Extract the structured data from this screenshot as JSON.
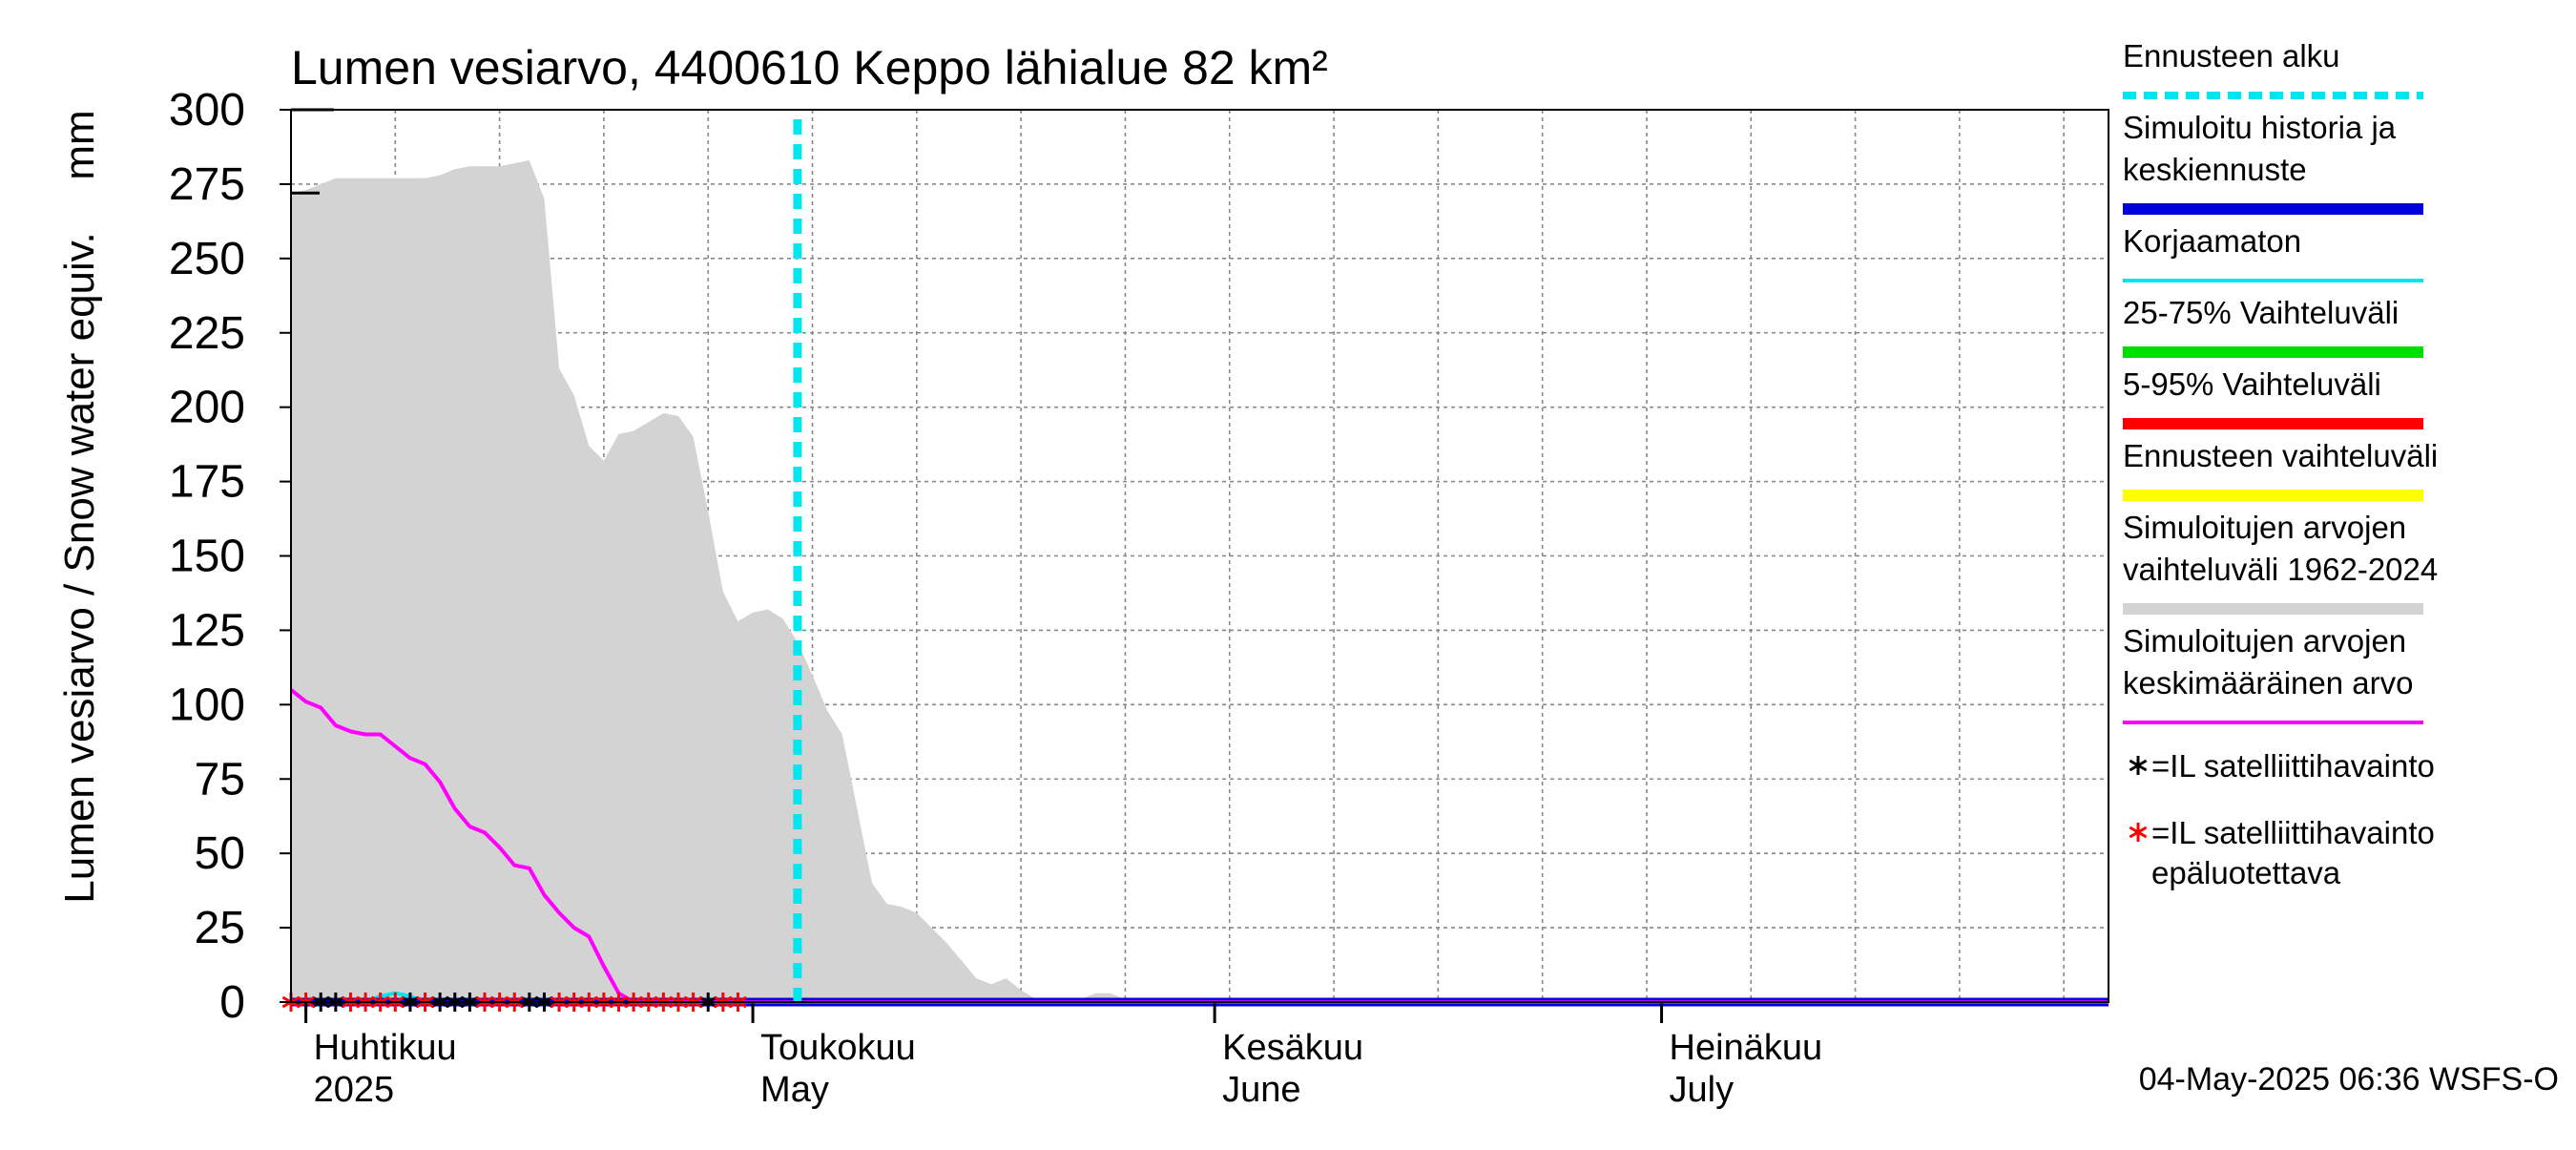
{
  "chart_data": {
    "type": "area",
    "title": "Lumen vesiarvo, 4400610 Keppo lähialue 82 km²",
    "ylabel": "Lumen vesiarvo / Snow water equiv.",
    "yunit": "mm",
    "ylim": [
      0,
      300
    ],
    "yticks": [
      0,
      25,
      50,
      75,
      100,
      125,
      150,
      175,
      200,
      225,
      250,
      275,
      300
    ],
    "xlim": [
      "2025-03-31",
      "2025-07-31"
    ],
    "grid": true,
    "legend_position": "right",
    "month_labels": [
      {
        "date": "2025-04-01",
        "fi": "Huhtikuu",
        "en": "2025"
      },
      {
        "date": "2025-05-01",
        "fi": "Toukokuu",
        "en": "May"
      },
      {
        "date": "2025-06-01",
        "fi": "Kesäkuu",
        "en": "June"
      },
      {
        "date": "2025-07-01",
        "fi": "Heinäkuu",
        "en": "July"
      }
    ],
    "forecast_start": "2025-05-04",
    "series": [
      {
        "name": "Simuloitujen arvojen vaihteluväli 1962-2024",
        "kind": "range",
        "color": "#d3d3d3",
        "points": [
          [
            "2025-03-31",
            272
          ],
          [
            "2025-04-01",
            273
          ],
          [
            "2025-04-02",
            275
          ],
          [
            "2025-04-03",
            277
          ],
          [
            "2025-04-05",
            277
          ],
          [
            "2025-04-07",
            277
          ],
          [
            "2025-04-09",
            277
          ],
          [
            "2025-04-10",
            278
          ],
          [
            "2025-04-11",
            280
          ],
          [
            "2025-04-12",
            281
          ],
          [
            "2025-04-14",
            281
          ],
          [
            "2025-04-15",
            282
          ],
          [
            "2025-04-16",
            283
          ],
          [
            "2025-04-17",
            270
          ],
          [
            "2025-04-18",
            213
          ],
          [
            "2025-04-19",
            204
          ],
          [
            "2025-04-20",
            187
          ],
          [
            "2025-04-21",
            182
          ],
          [
            "2025-04-22",
            191
          ],
          [
            "2025-04-23",
            192
          ],
          [
            "2025-04-24",
            195
          ],
          [
            "2025-04-25",
            198
          ],
          [
            "2025-04-26",
            197
          ],
          [
            "2025-04-27",
            190
          ],
          [
            "2025-04-28",
            165
          ],
          [
            "2025-04-29",
            138
          ],
          [
            "2025-04-30",
            128
          ],
          [
            "2025-05-01",
            131
          ],
          [
            "2025-05-02",
            132
          ],
          [
            "2025-05-03",
            129
          ],
          [
            "2025-05-04",
            121
          ],
          [
            "2025-05-05",
            110
          ],
          [
            "2025-05-06",
            98
          ],
          [
            "2025-05-07",
            90
          ],
          [
            "2025-05-08",
            65
          ],
          [
            "2025-05-09",
            40
          ],
          [
            "2025-05-10",
            33
          ],
          [
            "2025-05-11",
            32
          ],
          [
            "2025-05-12",
            30
          ],
          [
            "2025-05-13",
            25
          ],
          [
            "2025-05-14",
            20
          ],
          [
            "2025-05-15",
            14
          ],
          [
            "2025-05-16",
            8
          ],
          [
            "2025-05-17",
            6
          ],
          [
            "2025-05-18",
            8
          ],
          [
            "2025-05-19",
            4
          ],
          [
            "2025-05-20",
            1
          ],
          [
            "2025-05-21",
            1
          ],
          [
            "2025-05-22",
            0
          ],
          [
            "2025-05-23",
            1
          ],
          [
            "2025-05-24",
            3
          ],
          [
            "2025-05-25",
            3
          ],
          [
            "2025-05-26",
            1
          ],
          [
            "2025-05-27",
            0
          ],
          [
            "2025-07-31",
            0
          ]
        ]
      },
      {
        "name": "Simuloitujen arvojen keskimääräinen arvo",
        "kind": "line",
        "color": "#ff00ff",
        "points": [
          [
            "2025-03-31",
            105
          ],
          [
            "2025-04-01",
            101
          ],
          [
            "2025-04-02",
            99
          ],
          [
            "2025-04-03",
            93
          ],
          [
            "2025-04-04",
            91
          ],
          [
            "2025-04-05",
            90
          ],
          [
            "2025-04-06",
            90
          ],
          [
            "2025-04-07",
            86
          ],
          [
            "2025-04-08",
            82
          ],
          [
            "2025-04-09",
            80
          ],
          [
            "2025-04-10",
            74
          ],
          [
            "2025-04-11",
            65
          ],
          [
            "2025-04-12",
            59
          ],
          [
            "2025-04-13",
            57
          ],
          [
            "2025-04-14",
            52
          ],
          [
            "2025-04-15",
            46
          ],
          [
            "2025-04-16",
            45
          ],
          [
            "2025-04-17",
            36
          ],
          [
            "2025-04-18",
            30
          ],
          [
            "2025-04-19",
            25
          ],
          [
            "2025-04-20",
            22
          ],
          [
            "2025-04-21",
            12
          ],
          [
            "2025-04-22",
            3
          ],
          [
            "2025-04-23",
            0
          ],
          [
            "2025-07-31",
            0
          ]
        ]
      },
      {
        "name": "Korjaamaton",
        "kind": "line",
        "color": "#00e5ee",
        "points": [
          [
            "2025-04-05",
            0
          ],
          [
            "2025-04-06",
            2
          ],
          [
            "2025-04-07",
            3
          ],
          [
            "2025-04-08",
            2
          ],
          [
            "2025-04-09",
            0
          ],
          [
            "2025-07-31",
            0
          ]
        ]
      },
      {
        "name": "Ennusteen vaihteluväli",
        "kind": "line",
        "color": "#ffff00",
        "points": [
          [
            "2025-05-04",
            0
          ],
          [
            "2025-07-31",
            0
          ]
        ]
      },
      {
        "name": "5-95% Vaihteluväli",
        "kind": "line",
        "color": "#ff0000",
        "points": [
          [
            "2025-05-04",
            0
          ],
          [
            "2025-07-31",
            0
          ]
        ]
      },
      {
        "name": "25-75% Vaihteluväli",
        "kind": "line",
        "color": "#00dd00",
        "points": [
          [
            "2025-05-04",
            0
          ],
          [
            "2025-07-31",
            0
          ]
        ]
      },
      {
        "name": "Simuloitu historia ja keskiennuste",
        "kind": "line",
        "color": "#0000dd",
        "points": [
          [
            "2025-03-31",
            0
          ],
          [
            "2025-07-31",
            0
          ]
        ]
      },
      {
        "name": "=IL satelliittihavainto",
        "kind": "markers",
        "color": "#000000",
        "dates": [
          "2025-04-02",
          "2025-04-03",
          "2025-04-08",
          "2025-04-10",
          "2025-04-11",
          "2025-04-12",
          "2025-04-16",
          "2025-04-17",
          "2025-04-28"
        ],
        "value": 0
      },
      {
        "name": "=IL satelliittihavainto epäluotettava",
        "kind": "markers",
        "color": "#ff0000",
        "dates": [
          "2025-03-31",
          "2025-04-01",
          "2025-04-04",
          "2025-04-05",
          "2025-04-06",
          "2025-04-07",
          "2025-04-09",
          "2025-04-13",
          "2025-04-14",
          "2025-04-15",
          "2025-04-18",
          "2025-04-19",
          "2025-04-20",
          "2025-04-21",
          "2025-04-22",
          "2025-04-23",
          "2025-04-24",
          "2025-04-25",
          "2025-04-26",
          "2025-04-27",
          "2025-04-29",
          "2025-04-30"
        ],
        "value": 0
      }
    ],
    "legend": [
      {
        "label": "Ennusteen alku",
        "color": "#00e5ee",
        "style": "dashed"
      },
      {
        "label": "Simuloitu historia ja keskiennuste",
        "color": "#0000dd",
        "style": "thick"
      },
      {
        "label": "Korjaamaton",
        "color": "#00e5ee",
        "style": "thin"
      },
      {
        "label": "25-75% Vaihteluväli",
        "color": "#00dd00",
        "style": "thick"
      },
      {
        "label": "5-95% Vaihteluväli",
        "color": "#ff0000",
        "style": "thick"
      },
      {
        "label": "Ennusteen vaihteluväli",
        "color": "#ffff00",
        "style": "thick"
      },
      {
        "label": "Simuloitujen arvojen vaihteluväli 1962-2024",
        "color": "#d3d3d3",
        "style": "thick"
      },
      {
        "label": "Simuloitujen arvojen keskimääräinen arvo",
        "color": "#ff00ff",
        "style": "thin"
      },
      {
        "label": "=IL satelliittihavainto",
        "color": "#000000",
        "style": "marker"
      },
      {
        "label": "=IL satelliittihavainto epäluotettava",
        "color": "#ff0000",
        "style": "marker"
      }
    ],
    "footer": "04-May-2025 06:36 WSFS-O"
  }
}
